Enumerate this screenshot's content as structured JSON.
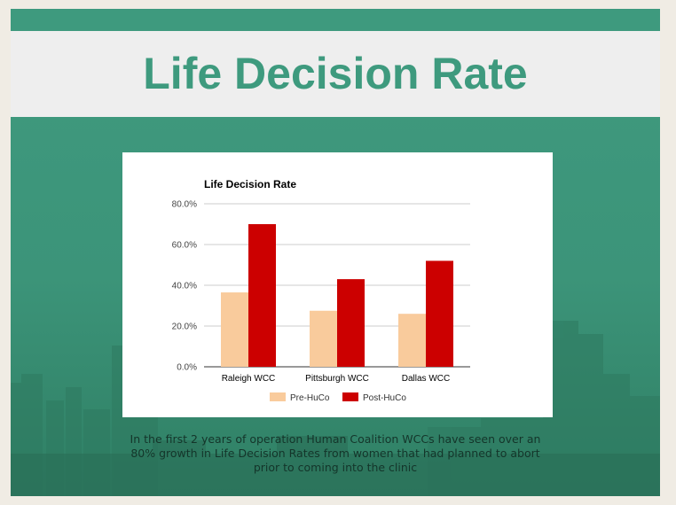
{
  "slide": {
    "title": "Life Decision Rate",
    "caption": "In the first 2 years of operation Human Coalition WCCs have seen over an 80% growth in Life Decision Rates from women that had planned to abort prior to coming into the clinic"
  },
  "colors": {
    "accent": "#3e9a7e",
    "title_bar": "#eeeeee",
    "pre": "#f9cb9c",
    "post": "#cc0000"
  },
  "chart_data": {
    "type": "bar",
    "title": "Life Decision Rate",
    "xlabel": "",
    "ylabel": "",
    "categories": [
      "Raleigh WCC",
      "Pittsburgh WCC",
      "Dallas WCC"
    ],
    "series": [
      {
        "name": "Pre-HuCo",
        "values": [
          36.5,
          27.5,
          26.0
        ],
        "color": "#f9cb9c"
      },
      {
        "name": "Post-HuCo",
        "values": [
          70.0,
          43.0,
          52.0
        ],
        "color": "#cc0000"
      }
    ],
    "ylim": [
      0,
      80
    ],
    "yticks": [
      "0.0%",
      "20.0%",
      "40.0%",
      "60.0%",
      "80.0%"
    ],
    "grid": true,
    "legend": "bottom"
  }
}
